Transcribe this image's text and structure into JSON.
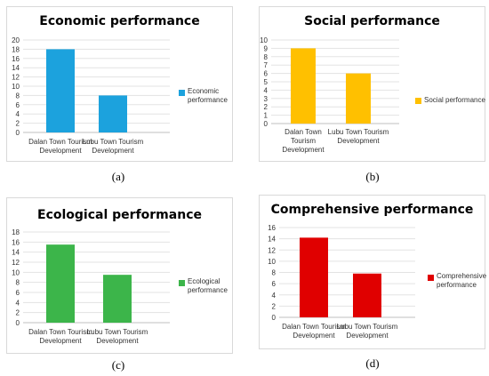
{
  "chart_data": [
    {
      "type": "bar",
      "title": "Economic performance",
      "categories": [
        "Dalan Town Tourism Development",
        "Lubu Town Tourism Development"
      ],
      "series": [
        {
          "name": "Economic performance",
          "values": [
            18,
            8
          ]
        }
      ],
      "ylim": [
        0,
        20
      ],
      "yticks": [
        0,
        2,
        4,
        6,
        8,
        10,
        12,
        14,
        16,
        18,
        20
      ],
      "color": "#1ca2dd",
      "grid": true,
      "legend": "right",
      "panel_label": "(a)"
    },
    {
      "type": "bar",
      "title": "Social performance",
      "categories": [
        "Dalan Town Tourism Development",
        "Lubu Town Tourism Development"
      ],
      "series": [
        {
          "name": "Social performance",
          "values": [
            9,
            6
          ]
        }
      ],
      "ylim": [
        0,
        10
      ],
      "yticks": [
        0,
        1,
        2,
        3,
        4,
        5,
        6,
        7,
        8,
        9,
        10
      ],
      "color": "#ffc000",
      "grid": true,
      "legend": "right",
      "panel_label": "(b)"
    },
    {
      "type": "bar",
      "title": "Ecological performance",
      "categories": [
        "Dalan Town Tourism Development",
        "Lubu Town Tourism Development"
      ],
      "series": [
        {
          "name": "Ecological performance",
          "values": [
            15.5,
            9.5
          ]
        }
      ],
      "ylim": [
        0,
        18
      ],
      "yticks": [
        0,
        2,
        4,
        6,
        8,
        10,
        12,
        14,
        16,
        18
      ],
      "color": "#3cb54a",
      "grid": true,
      "legend": "right",
      "panel_label": "(c)"
    },
    {
      "type": "bar",
      "title": "Comprehensive performance",
      "categories": [
        "Dalan Town Tourism Development",
        "Lubu Town Tourism Development"
      ],
      "series": [
        {
          "name": "Comprehensive performance",
          "values": [
            14.2,
            7.8
          ]
        }
      ],
      "ylim": [
        0,
        16
      ],
      "yticks": [
        0,
        2,
        4,
        6,
        8,
        10,
        12,
        14,
        16
      ],
      "color": "#e00000",
      "grid": true,
      "legend": "right",
      "panel_label": "(d)"
    }
  ]
}
